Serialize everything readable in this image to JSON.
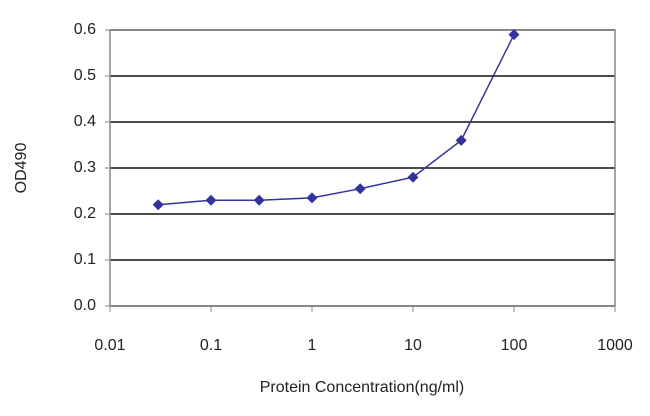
{
  "chart_data": {
    "type": "line",
    "x_label": "Protein Concentration(ng/ml)",
    "y_label": "OD490",
    "x": [
      0.03,
      0.1,
      0.3,
      1,
      3,
      10,
      30,
      100
    ],
    "values": [
      0.22,
      0.23,
      0.23,
      0.235,
      0.255,
      0.28,
      0.36,
      0.59
    ],
    "color": "#3333a0",
    "xscale": "log",
    "xlim": [
      0.01,
      1000
    ],
    "xticks": [
      0.01,
      0.1,
      1,
      10,
      100,
      1000
    ],
    "ylim": [
      0,
      0.6
    ],
    "yticks": [
      {
        "value": 0,
        "label": "0.0"
      },
      0.1,
      0.2,
      0.3,
      0.4,
      0.5,
      0.6
    ],
    "grid": true
  }
}
